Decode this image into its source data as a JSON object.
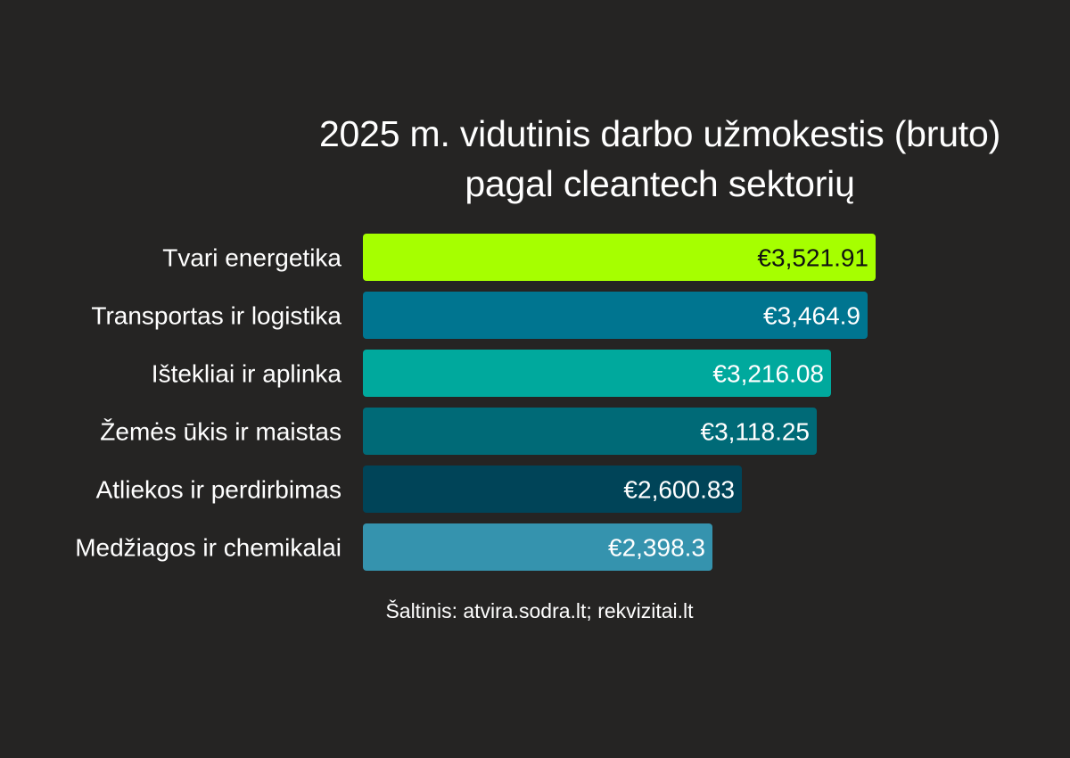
{
  "chart_data": {
    "type": "bar",
    "orientation": "horizontal",
    "title": "2025 m. vidutinis darbo užmokestis (bruto)",
    "subtitle": "pagal cleantech sektorių",
    "categories": [
      "Tvari energetika",
      "Transportas ir logistika",
      "Ištekliai ir aplinka",
      "Žemės ūkis ir maistas",
      "Atliekos ir perdirbimas",
      "Medžiagos ir chemikalai"
    ],
    "values": [
      3521.91,
      3464.9,
      3216.08,
      3118.25,
      2600.83,
      2398.3
    ],
    "value_labels": [
      "€3,521.91",
      "€3,464.9",
      "€3,216.08",
      "€3,118.25",
      "€2,600.83",
      "€2,398.3"
    ],
    "bar_colors": [
      "#A6FF00",
      "#007590",
      "#00A99D",
      "#006A77",
      "#004458",
      "#3593AE"
    ],
    "label_colors": [
      "#111111",
      "#ffffff",
      "#ffffff",
      "#ffffff",
      "#ffffff",
      "#ffffff"
    ],
    "xlim": [
      0,
      3521.91
    ],
    "grid": false,
    "legend": "none",
    "source": "Šaltinis: atvira.sodra.lt; rekvizitai.lt"
  }
}
